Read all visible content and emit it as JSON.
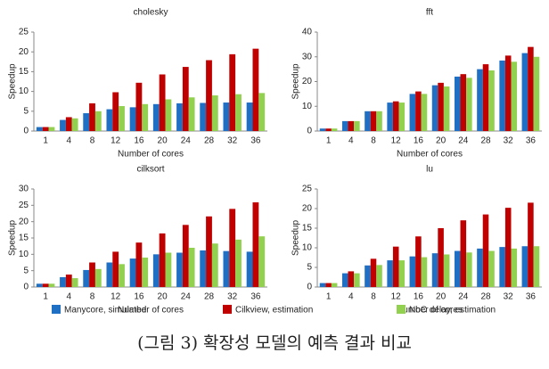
{
  "chart_data": [
    {
      "type": "bar",
      "title": "cholesky",
      "xlabel": "Number of cores",
      "ylabel": "Speedup",
      "categories": [
        "1",
        "4",
        "8",
        "12",
        "16",
        "20",
        "24",
        "28",
        "32",
        "36"
      ],
      "ylim": [
        0,
        25
      ],
      "yticks": [
        0,
        5,
        10,
        15,
        20,
        25
      ],
      "series": [
        {
          "values": [
            1,
            2.8,
            4.5,
            5.5,
            6,
            6.8,
            7,
            7.1,
            7.2,
            7.2
          ]
        },
        {
          "values": [
            1,
            3.5,
            7,
            9.8,
            12.2,
            14.3,
            16.2,
            17.9,
            19.4,
            20.8
          ]
        },
        {
          "values": [
            1,
            3.2,
            5,
            6.3,
            6.8,
            8,
            8.5,
            9,
            9.3,
            9.6
          ]
        }
      ]
    },
    {
      "type": "bar",
      "title": "fft",
      "xlabel": "Number of cores",
      "ylabel": "Speedup",
      "categories": [
        "1",
        "4",
        "8",
        "12",
        "16",
        "20",
        "24",
        "28",
        "32",
        "36"
      ],
      "ylim": [
        0,
        40
      ],
      "yticks": [
        0,
        10,
        20,
        30,
        40
      ],
      "series": [
        {
          "values": [
            1,
            4,
            8,
            11.5,
            15,
            18.5,
            22,
            25,
            28.5,
            31.5
          ]
        },
        {
          "values": [
            1,
            4,
            8,
            12,
            16,
            19.5,
            23,
            27,
            30.5,
            34
          ]
        },
        {
          "values": [
            1,
            4,
            8,
            11.5,
            15,
            18,
            21.5,
            24.5,
            28,
            30
          ]
        }
      ]
    },
    {
      "type": "bar",
      "title": "cilksort",
      "xlabel": "Number of cores",
      "ylabel": "Speedup",
      "categories": [
        "1",
        "4",
        "8",
        "12",
        "16",
        "20",
        "24",
        "28",
        "32",
        "36"
      ],
      "ylim": [
        0,
        30
      ],
      "yticks": [
        0,
        5,
        10,
        15,
        20,
        25,
        30
      ],
      "series": [
        {
          "values": [
            1,
            3,
            5.2,
            7.5,
            8.7,
            10,
            10.5,
            11.2,
            11,
            10.8
          ]
        },
        {
          "values": [
            1,
            3.8,
            7.5,
            10.8,
            13.6,
            16.4,
            19,
            21.6,
            23.9,
            25.9
          ]
        },
        {
          "values": [
            1,
            2.7,
            5.5,
            7,
            9,
            10.5,
            12,
            13.3,
            14.5,
            15.5
          ]
        }
      ]
    },
    {
      "type": "bar",
      "title": "lu",
      "xlabel": "Number of cores",
      "ylabel": "Speedup",
      "categories": [
        "1",
        "4",
        "8",
        "12",
        "16",
        "20",
        "24",
        "28",
        "32",
        "36"
      ],
      "ylim": [
        0,
        25
      ],
      "yticks": [
        0,
        5,
        10,
        15,
        20,
        25
      ],
      "series": [
        {
          "values": [
            1,
            3.5,
            5.5,
            6.8,
            7.8,
            8.6,
            9.2,
            9.8,
            10.2,
            10.4
          ]
        },
        {
          "values": [
            1,
            4,
            7.2,
            10.3,
            12.9,
            15,
            17,
            18.5,
            20.2,
            21.5
          ]
        },
        {
          "values": [
            1,
            3.5,
            5.6,
            6.8,
            7.6,
            8.3,
            8.8,
            9.2,
            9.8,
            10.4
          ]
        }
      ]
    }
  ],
  "legend": [
    {
      "name": "Manycore, simulated",
      "color": "#1f6fc5"
    },
    {
      "name": "Cilkview, estimation",
      "color": "#c00000"
    },
    {
      "name": "NoC delay, estimation",
      "color": "#92d050"
    }
  ],
  "caption": "(그림 3) 확장성 모델의 예측 결과 비교"
}
